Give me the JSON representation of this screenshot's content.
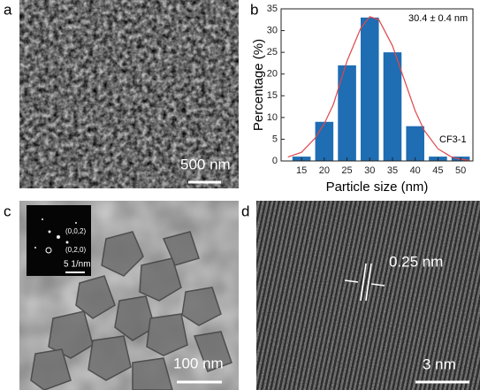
{
  "panel_labels": [
    "a",
    "b",
    "c",
    "d"
  ],
  "scale_bars": {
    "a": "500 nm",
    "c": "100 nm",
    "d": "3 nm"
  },
  "inset": {
    "labels": [
      "(0,0,2)",
      "(0,2,0)"
    ],
    "scale": "5 1/nm"
  },
  "lattice_spacing": "0.25 nm",
  "chart_data": {
    "type": "bar",
    "x": [
      15,
      20,
      25,
      30,
      35,
      40,
      45,
      50
    ],
    "values": [
      1,
      9,
      22,
      33,
      25,
      8,
      1,
      1
    ],
    "color": "#1f6db3",
    "xlabel": "Particle size (nm)",
    "ylabel": "Percentage (%)",
    "xlim": [
      10.5,
      52.7
    ],
    "xticks": [
      15,
      20,
      25,
      30,
      35,
      40,
      45,
      50
    ],
    "ylim": [
      0,
      35
    ],
    "yticks": [
      0,
      5,
      10,
      15,
      20,
      25,
      30,
      35
    ],
    "annotations": [
      "30.4 ± 0.4 nm",
      "CF3-1"
    ],
    "fit": {
      "color": "#e0474c",
      "x": [
        12,
        15,
        18,
        20,
        22,
        25,
        28,
        30,
        32,
        35,
        38,
        40,
        42,
        45,
        48,
        50,
        52
      ],
      "values": [
        0.9,
        2,
        5.3,
        8.6,
        13,
        23,
        30.5,
        33.2,
        32.5,
        26.5,
        17.5,
        11.5,
        7,
        2.8,
        0.9,
        0.4,
        0.1
      ]
    }
  }
}
